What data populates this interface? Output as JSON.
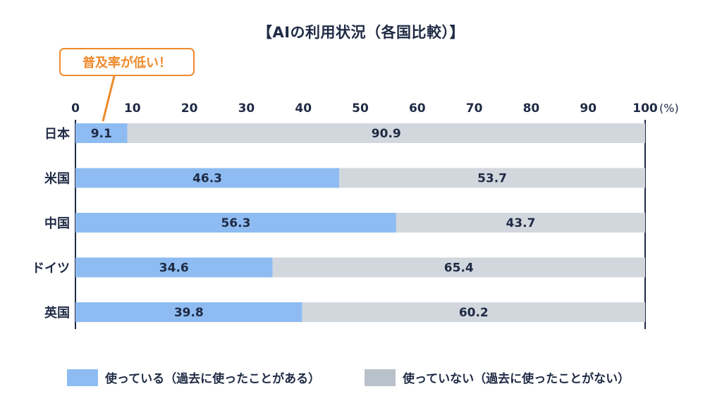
{
  "title": "【AIの利用状況（各国比較）】",
  "callout": {
    "text": "普及率が低い！",
    "target_category": "日本"
  },
  "colors": {
    "used": "#8ebcf2",
    "not_used": "#d2d7de",
    "accent": "#ee8a2c",
    "text": "#1f2a44",
    "axis": "#1f2a44",
    "legend_not_used": "#b9c1cb"
  },
  "chart_data": {
    "type": "bar",
    "orientation": "horizontal",
    "stacked": true,
    "categories": [
      "日本",
      "米国",
      "中国",
      "ドイツ",
      "英国"
    ],
    "series": [
      {
        "name": "使っている（過去に使ったことがある）",
        "values": [
          9.1,
          46.3,
          56.3,
          34.6,
          39.8
        ]
      },
      {
        "name": "使っていない（過去に使ったことがない）",
        "values": [
          90.9,
          53.7,
          43.7,
          65.4,
          60.2
        ]
      }
    ],
    "xlim": [
      0,
      100
    ],
    "x_ticks": [
      0,
      10,
      20,
      30,
      40,
      50,
      60,
      70,
      80,
      90,
      100
    ],
    "x_unit": "(%)",
    "x_axis_position": "top",
    "grid": false,
    "legend_position": "bottom"
  }
}
